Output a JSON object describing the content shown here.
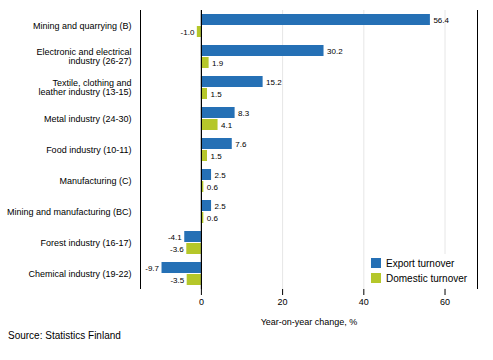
{
  "chart_data": {
    "type": "bar",
    "orientation": "horizontal",
    "categories": [
      "Mining and quarrying (B)",
      "Electronic and electrical\nindustry (26-27)",
      "Textile, clothing and\nleather industry (13-15)",
      "Metal industry (24-30)",
      "Food industry (10-11)",
      "Manufacturing (C)",
      "Mining and manufacturing (BC)",
      "Forest industry (16-17)",
      "Chemical industry (19-22)"
    ],
    "series": [
      {
        "name": "Export turnover",
        "color": "#2570b5",
        "values": [
          56.4,
          30.2,
          15.2,
          8.3,
          7.6,
          2.5,
          2.5,
          -4.1,
          -9.7
        ]
      },
      {
        "name": "Domestic turnover",
        "color": "#b5c72a",
        "values": [
          -1.0,
          1.9,
          1.5,
          4.1,
          1.5,
          0.6,
          0.6,
          -3.6,
          -3.5
        ],
        "value_labels": [
          "-1.0",
          "1.9",
          "1.5",
          "4.1",
          "1.5",
          "0.6",
          "0.6",
          "-3.6",
          "-3.5"
        ]
      }
    ],
    "xlabel": "Year-on-year change, %",
    "xlim": [
      -15,
      68
    ],
    "xticks": [
      0,
      20,
      40,
      60
    ],
    "grid": true,
    "legend": "lower right",
    "data_labels": true,
    "source": "Source: Statistics Finland"
  }
}
